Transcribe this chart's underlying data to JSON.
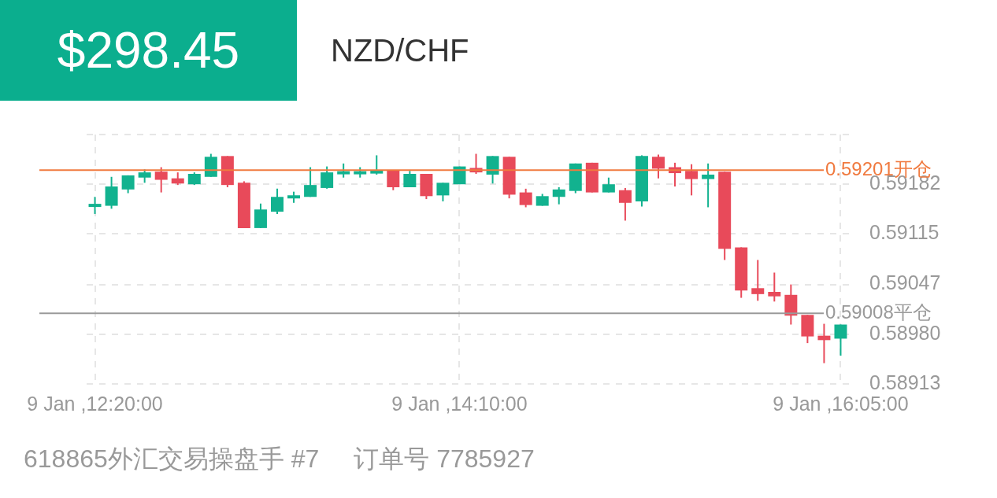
{
  "chart_data": {
    "type": "candlestick",
    "title": "NZD/CHF",
    "subtitle": "$298.45",
    "annotations": [
      "618865外汇交易操盘手 #7",
      "订单号 7785927"
    ],
    "categories": [
      "9 Jan ,12:20:00",
      null,
      null,
      null,
      null,
      null,
      null,
      null,
      null,
      null,
      null,
      null,
      null,
      null,
      null,
      null,
      null,
      null,
      null,
      null,
      null,
      null,
      "9 Jan ,14:10:00",
      null,
      null,
      null,
      null,
      null,
      null,
      null,
      null,
      null,
      null,
      null,
      null,
      null,
      null,
      null,
      null,
      null,
      null,
      null,
      null,
      null,
      null,
      "9 Jan ,16:05:00"
    ],
    "ohlc": [
      [
        0.59152,
        0.59165,
        0.59142,
        0.59155
      ],
      [
        0.59153,
        0.59192,
        0.59149,
        0.59179
      ],
      [
        0.59175,
        0.59194,
        0.5917,
        0.59194
      ],
      [
        0.59191,
        0.59202,
        0.59184,
        0.59198
      ],
      [
        0.59199,
        0.59205,
        0.59171,
        0.59188
      ],
      [
        0.5919,
        0.59198,
        0.59181,
        0.59183
      ],
      [
        0.59182,
        0.59198,
        0.59181,
        0.59196
      ],
      [
        0.59192,
        0.59223,
        0.59192,
        0.59219
      ],
      [
        0.5922,
        0.5922,
        0.59178,
        0.59181
      ],
      [
        0.59184,
        0.59186,
        0.59123,
        0.59123
      ],
      [
        0.59123,
        0.59156,
        0.59123,
        0.59148
      ],
      [
        0.59145,
        0.59176,
        0.59142,
        0.59165
      ],
      [
        0.59163,
        0.59172,
        0.59157,
        0.59167
      ],
      [
        0.59165,
        0.59205,
        0.59165,
        0.59181
      ],
      [
        0.59177,
        0.59206,
        0.59176,
        0.59198
      ],
      [
        0.59196,
        0.5921,
        0.59191,
        0.59199
      ],
      [
        0.59196,
        0.59205,
        0.59191,
        0.59199
      ],
      [
        0.59197,
        0.59221,
        0.59195,
        0.592
      ],
      [
        0.59201,
        0.59201,
        0.59174,
        0.59178
      ],
      [
        0.59178,
        0.592,
        0.59178,
        0.59196
      ],
      [
        0.59196,
        0.59196,
        0.59162,
        0.59166
      ],
      [
        0.59167,
        0.59184,
        0.59159,
        0.59184
      ],
      [
        0.59182,
        0.59206,
        0.59182,
        0.59206
      ],
      [
        0.59204,
        0.59223,
        0.59196,
        0.59198
      ],
      [
        0.59195,
        0.5922,
        0.59183,
        0.5922
      ],
      [
        0.59219,
        0.59219,
        0.59163,
        0.59168
      ],
      [
        0.59171,
        0.59176,
        0.59151,
        0.59154
      ],
      [
        0.59153,
        0.59169,
        0.59153,
        0.59166
      ],
      [
        0.59165,
        0.59178,
        0.59155,
        0.59175
      ],
      [
        0.59173,
        0.5921,
        0.5917,
        0.5921
      ],
      [
        0.59211,
        0.59211,
        0.59171,
        0.59171
      ],
      [
        0.59171,
        0.59191,
        0.59171,
        0.59182
      ],
      [
        0.59174,
        0.59177,
        0.59133,
        0.59157
      ],
      [
        0.59159,
        0.59221,
        0.59152,
        0.5922
      ],
      [
        0.59219,
        0.59222,
        0.5919,
        0.59203
      ],
      [
        0.59205,
        0.59211,
        0.59179,
        0.59197
      ],
      [
        0.592,
        0.59209,
        0.59167,
        0.59189
      ],
      [
        0.59189,
        0.5921,
        0.59151,
        0.59195
      ],
      [
        0.59199,
        0.59199,
        0.5908,
        0.59095
      ],
      [
        0.59097,
        0.59097,
        0.59029,
        0.59039
      ],
      [
        0.59042,
        0.5908,
        0.59025,
        0.59034
      ],
      [
        0.59037,
        0.59063,
        0.59024,
        0.59031
      ],
      [
        0.59033,
        0.59047,
        0.58993,
        0.59005
      ],
      [
        0.59006,
        0.59006,
        0.58968,
        0.58977
      ],
      [
        0.58978,
        0.58994,
        0.58941,
        0.58972
      ],
      [
        0.58974,
        0.58993,
        0.58951,
        0.58993
      ]
    ],
    "colors": [
      "#12b28f",
      "#12b28f",
      "#12b28f",
      "#12b28f",
      "#e84a5a",
      "#e84a5a",
      "#12b28f",
      "#12b28f",
      "#e84a5a",
      "#e84a5a",
      "#12b28f",
      "#12b28f",
      "#12b28f",
      "#12b28f",
      "#12b28f",
      "#12b28f",
      "#12b28f",
      "#12b28f",
      "#e84a5a",
      "#12b28f",
      "#e84a5a",
      "#12b28f",
      "#12b28f",
      "#e84a5a",
      "#12b28f",
      "#e84a5a",
      "#e84a5a",
      "#12b28f",
      "#12b28f",
      "#12b28f",
      "#e84a5a",
      "#12b28f",
      "#e84a5a",
      "#12b28f",
      "#e84a5a",
      "#e84a5a",
      "#e84a5a",
      "#12b28f",
      "#e84a5a",
      "#e84a5a",
      "#e84a5a",
      "#e84a5a",
      "#e84a5a",
      "#e84a5a",
      "#e84a5a",
      "#12b28f"
    ],
    "ylim": [
      0.58913,
      0.59249
    ],
    "yticks": [
      0.58913,
      {
        "value": 0.5898,
        "label": "0.58980"
      },
      0.59047,
      0.59115,
      0.59182,
      {
        "value": 0.59249,
        "label": null
      }
    ],
    "grid": true,
    "ref_lines": [
      {
        "axis": "y",
        "value": 0.59201,
        "label": "0.59201开仓",
        "color": "#f07a3f"
      },
      {
        "axis": "y",
        "value": 0.59008,
        "label": "0.59008平仓",
        "color": "#9a9a9a"
      }
    ]
  }
}
